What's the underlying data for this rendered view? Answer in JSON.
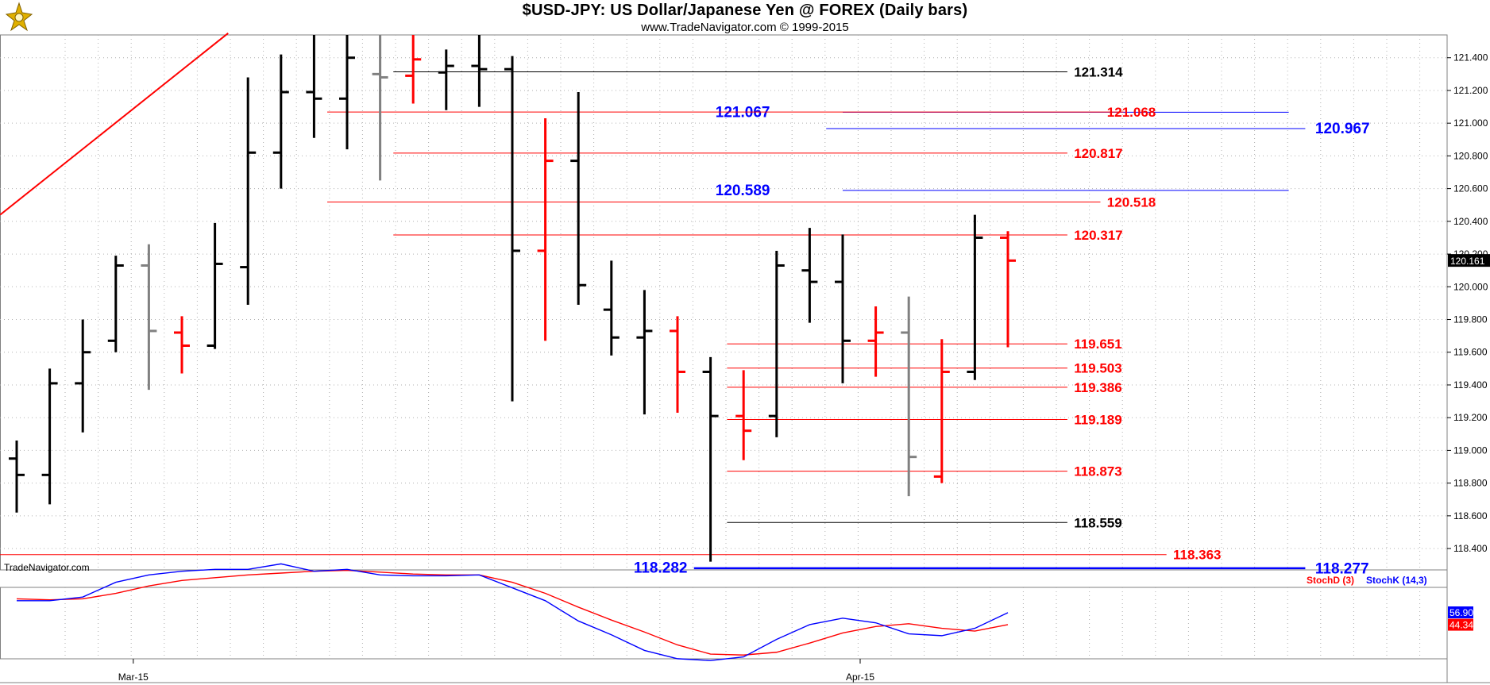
{
  "header": {
    "title": "$USD-JPY:  US Dollar/Japanese Yen @ FOREX  (Daily bars)",
    "subtitle": "www.TradeNavigator.com © 1999-2015"
  },
  "watermark": "TradeNavigator.com",
  "indicator_legend": {
    "stoch_d": "StochD (3)",
    "stoch_k": "StochK (14,3)"
  },
  "colors": {
    "up_bar": "#000000",
    "down_bar": "#ff0000",
    "doji_bar": "#808080",
    "red_level": "#ff0000",
    "blue_level": "#0000ff",
    "black_level": "#000000",
    "trendline": "#ff0000",
    "grid": "#b0b0b0"
  },
  "chart_data": [
    {
      "type": "ohlc",
      "title": "$USD-JPY:  US Dollar/Japanese Yen @ FOREX  (Daily bars)",
      "x_labels": [
        {
          "label": "Mar-15",
          "index": 3
        },
        {
          "label": "Apr-15",
          "index": 25
        }
      ],
      "ylim": [
        118.25,
        121.52
      ],
      "yticks": [
        "118.400",
        "118.600",
        "118.800",
        "119.000",
        "119.200",
        "119.400",
        "119.600",
        "119.800",
        "120.000",
        "120.200",
        "120.400",
        "120.600",
        "120.800",
        "121.000",
        "121.200",
        "121.400"
      ],
      "last_price": "120.161",
      "grid": true,
      "bars": [
        {
          "o": 118.95,
          "h": 119.06,
          "l": 118.62,
          "c": 118.85,
          "color": "up"
        },
        {
          "o": 118.85,
          "h": 119.5,
          "l": 118.67,
          "c": 119.41,
          "color": "up"
        },
        {
          "o": 119.41,
          "h": 119.8,
          "l": 119.11,
          "c": 119.6,
          "color": "up"
        },
        {
          "o": 119.67,
          "h": 120.19,
          "l": 119.6,
          "c": 120.13,
          "color": "up"
        },
        {
          "o": 120.13,
          "h": 120.26,
          "l": 119.37,
          "c": 119.73,
          "color": "doji"
        },
        {
          "o": 119.72,
          "h": 119.82,
          "l": 119.47,
          "c": 119.64,
          "color": "down"
        },
        {
          "o": 119.64,
          "h": 120.39,
          "l": 119.62,
          "c": 120.14,
          "color": "up"
        },
        {
          "o": 120.12,
          "h": 121.28,
          "l": 119.89,
          "c": 120.82,
          "color": "up"
        },
        {
          "o": 120.82,
          "h": 121.42,
          "l": 120.6,
          "c": 121.19,
          "color": "up"
        },
        {
          "o": 121.19,
          "h": 121.55,
          "l": 120.91,
          "c": 121.15,
          "color": "up"
        },
        {
          "o": 121.15,
          "h": 121.55,
          "l": 120.84,
          "c": 121.4,
          "color": "up"
        },
        {
          "o": 121.3,
          "h": 121.55,
          "l": 120.65,
          "c": 121.28,
          "color": "doji"
        },
        {
          "o": 121.29,
          "h": 121.55,
          "l": 121.12,
          "c": 121.39,
          "color": "down"
        },
        {
          "o": 121.31,
          "h": 121.45,
          "l": 121.08,
          "c": 121.35,
          "color": "up"
        },
        {
          "o": 121.35,
          "h": 121.55,
          "l": 121.1,
          "c": 121.33,
          "color": "up"
        },
        {
          "o": 121.33,
          "h": 121.41,
          "l": 119.3,
          "c": 120.22,
          "color": "up"
        },
        {
          "o": 120.22,
          "h": 121.03,
          "l": 119.67,
          "c": 120.77,
          "color": "down"
        },
        {
          "o": 120.77,
          "h": 121.19,
          "l": 119.89,
          "c": 120.01,
          "color": "up"
        },
        {
          "o": 119.86,
          "h": 120.16,
          "l": 119.58,
          "c": 119.69,
          "color": "up"
        },
        {
          "o": 119.69,
          "h": 119.98,
          "l": 119.22,
          "c": 119.73,
          "color": "up"
        },
        {
          "o": 119.73,
          "h": 119.82,
          "l": 119.23,
          "c": 119.48,
          "color": "down"
        },
        {
          "o": 119.48,
          "h": 119.57,
          "l": 118.32,
          "c": 119.21,
          "color": "up"
        },
        {
          "o": 119.21,
          "h": 119.49,
          "l": 118.94,
          "c": 119.12,
          "color": "down"
        },
        {
          "o": 119.21,
          "h": 120.22,
          "l": 119.08,
          "c": 120.13,
          "color": "up"
        },
        {
          "o": 120.1,
          "h": 120.36,
          "l": 119.78,
          "c": 120.03,
          "color": "up"
        },
        {
          "o": 120.03,
          "h": 120.32,
          "l": 119.41,
          "c": 119.67,
          "color": "up"
        },
        {
          "o": 119.67,
          "h": 119.88,
          "l": 119.45,
          "c": 119.72,
          "color": "down"
        },
        {
          "o": 119.72,
          "h": 119.94,
          "l": 118.72,
          "c": 118.96,
          "color": "doji"
        },
        {
          "o": 118.84,
          "h": 119.68,
          "l": 118.8,
          "c": 119.48,
          "color": "down"
        },
        {
          "o": 119.48,
          "h": 120.44,
          "l": 119.43,
          "c": 120.3,
          "color": "up"
        },
        {
          "o": 120.3,
          "h": 120.34,
          "l": 119.63,
          "c": 120.16,
          "color": "down"
        }
      ],
      "trendline": {
        "color": "red",
        "from": {
          "index": -0.5,
          "price": 120.44
        },
        "to": {
          "index": 6.4,
          "price": 121.55
        }
      },
      "levels": [
        {
          "price": 121.314,
          "label": "121.314",
          "color": "black",
          "from": 11.4,
          "to": 31.8,
          "label_at": 32.0
        },
        {
          "price": 121.067,
          "label": "121.067",
          "color": "blue",
          "from": 25.0,
          "to": 38.5,
          "label_at": 22.8,
          "label_side": "left"
        },
        {
          "price": 121.068,
          "label": "121.068",
          "color": "red",
          "from": 9.4,
          "to": 33.5,
          "label_at": 33.0
        },
        {
          "price": 120.967,
          "label": "120.967",
          "color": "blue",
          "from": 24.5,
          "to": 39.0,
          "label_at": 39.3
        },
        {
          "price": 120.817,
          "label": "120.817",
          "color": "red",
          "from": 11.4,
          "to": 31.8,
          "label_at": 32.0
        },
        {
          "price": 120.589,
          "label": "120.589",
          "color": "blue",
          "from": 25.0,
          "to": 38.5,
          "label_at": 22.8,
          "label_side": "left"
        },
        {
          "price": 120.518,
          "label": "120.518",
          "color": "red",
          "from": 9.4,
          "to": 32.8,
          "label_at": 33.0
        },
        {
          "price": 120.317,
          "label": "120.317",
          "color": "red",
          "from": 11.4,
          "to": 31.8,
          "label_at": 32.0
        },
        {
          "price": 119.651,
          "label": "119.651",
          "color": "red",
          "from": 21.5,
          "to": 31.8,
          "label_at": 32.0
        },
        {
          "price": 119.503,
          "label": "119.503",
          "color": "red",
          "from": 21.5,
          "to": 31.8,
          "label_at": 32.0
        },
        {
          "price": 119.386,
          "label": "119.386",
          "color": "red",
          "from": 21.5,
          "to": 31.8,
          "label_at": 32.0
        },
        {
          "price": 119.189,
          "label": "119.189",
          "color": "red",
          "from": 21.5,
          "to": 31.8,
          "label_at": 32.0
        },
        {
          "price": 118.873,
          "label": "118.873",
          "color": "red",
          "from": 21.5,
          "to": 31.8,
          "label_at": 32.0
        },
        {
          "price": 118.559,
          "label": "118.559",
          "color": "black",
          "from": 21.5,
          "to": 31.8,
          "label_at": 32.0
        },
        {
          "price": 118.363,
          "label": "118.363",
          "color": "red",
          "from": -1.0,
          "to": 34.8,
          "label_at": 35.0
        },
        {
          "price": 118.282,
          "label": "118.282",
          "color": "blue",
          "from": 20.5,
          "to": 39.0,
          "label_at": 20.3,
          "label_side": "left"
        },
        {
          "price": 118.277,
          "label": "118.277",
          "color": "blue",
          "from": 20.5,
          "to": 39.0,
          "label_at": 39.3
        }
      ]
    },
    {
      "type": "line",
      "title": "",
      "legend": [
        "StochD (3)",
        "StochK (14,3)"
      ],
      "ylim": [
        0,
        100
      ],
      "last_values": {
        "stoch_k": "56.90",
        "stoch_d": "44.34"
      },
      "series": [
        {
          "name": "StochD (3)",
          "color": "red",
          "values": [
            72,
            71,
            72,
            78,
            86,
            92,
            95,
            98,
            100,
            102,
            103,
            101,
            99,
            98,
            98,
            90,
            78,
            63,
            49,
            36,
            22,
            12,
            11,
            14,
            24,
            35,
            42,
            45,
            40,
            37,
            44
          ]
        },
        {
          "name": "StochK (14,3)",
          "color": "blue",
          "values": [
            70,
            70,
            74,
            90,
            98,
            102,
            104,
            104,
            110,
            102,
            104,
            98,
            97,
            97,
            98,
            84,
            70,
            48,
            33,
            16,
            7,
            5,
            9,
            28,
            44,
            51,
            46,
            34,
            32,
            40,
            57
          ]
        }
      ]
    }
  ]
}
